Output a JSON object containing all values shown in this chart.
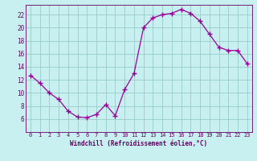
{
  "hours": [
    0,
    1,
    2,
    3,
    4,
    5,
    6,
    7,
    8,
    9,
    10,
    11,
    12,
    13,
    14,
    15,
    16,
    17,
    18,
    19,
    20,
    21,
    22,
    23
  ],
  "values": [
    12.7,
    11.5,
    10.0,
    9.0,
    7.2,
    6.3,
    6.2,
    6.7,
    8.2,
    6.5,
    10.5,
    13.0,
    20.0,
    21.5,
    22.0,
    22.2,
    22.8,
    22.2,
    21.0,
    19.0,
    17.0,
    16.5,
    16.5,
    14.5
  ],
  "line_color": "#990099",
  "marker": "+",
  "bg_color": "#c8f0f0",
  "grid_color": "#99cccc",
  "tick_color": "#660066",
  "xlabel": "Windchill (Refroidissement éolien,°C)",
  "ylim": [
    4,
    23.5
  ],
  "xlim": [
    -0.5,
    23.5
  ],
  "yticks": [
    6,
    8,
    10,
    12,
    14,
    16,
    18,
    20,
    22
  ],
  "xticks": [
    0,
    1,
    2,
    3,
    4,
    5,
    6,
    7,
    8,
    9,
    10,
    11,
    12,
    13,
    14,
    15,
    16,
    17,
    18,
    19,
    20,
    21,
    22,
    23
  ]
}
